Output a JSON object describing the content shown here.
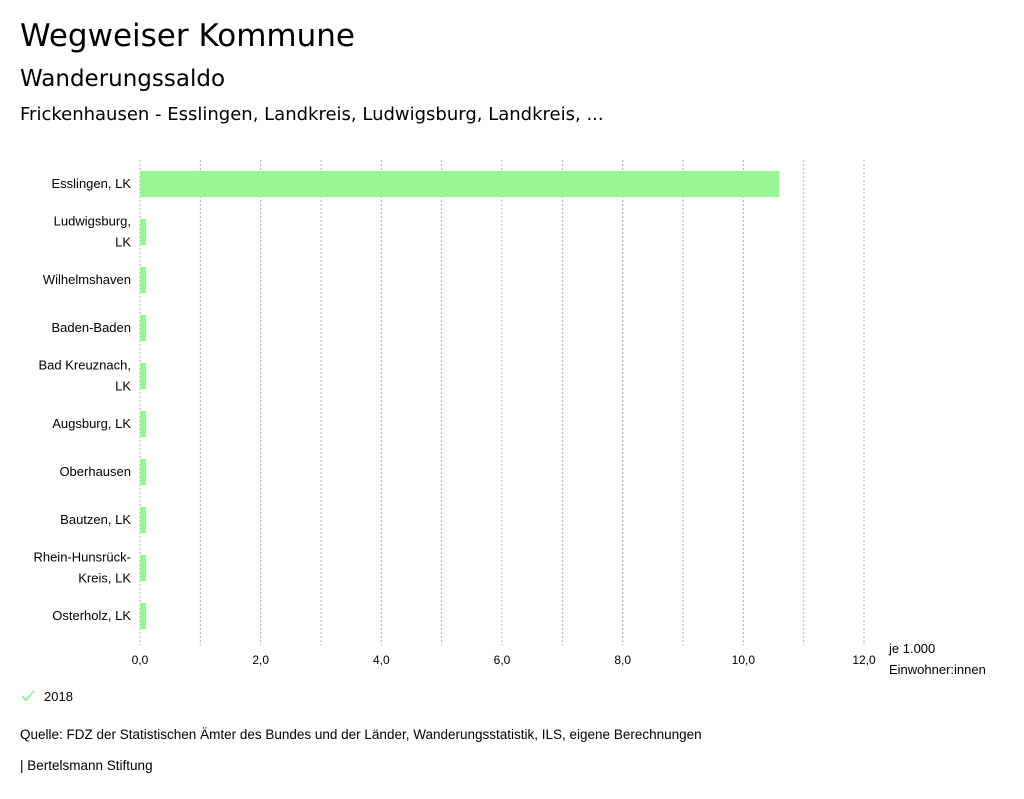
{
  "header": {
    "title": "Wegweiser Kommune",
    "subtitle": "Wanderungssaldo",
    "selection": "Frickenhausen - Esslingen, Landkreis, Ludwigsburg, Landkreis, ..."
  },
  "chart_data": {
    "type": "bar",
    "orientation": "horizontal",
    "categories": [
      [
        "Esslingen, LK"
      ],
      [
        "Ludwigsburg,",
        "LK"
      ],
      [
        "Wilhelmshaven"
      ],
      [
        "Baden-Baden"
      ],
      [
        "Bad Kreuznach,",
        "LK"
      ],
      [
        "Augsburg, LK"
      ],
      [
        "Oberhausen"
      ],
      [
        "Bautzen, LK"
      ],
      [
        "Rhein-Hunsrück-",
        "Kreis, LK"
      ],
      [
        "Osterholz, LK"
      ]
    ],
    "series": [
      {
        "name": "2018",
        "values": [
          10.6,
          0.1,
          0.1,
          0.1,
          0.1,
          0.1,
          0.1,
          0.1,
          0.1,
          0.1
        ]
      }
    ],
    "xlim": [
      0,
      12
    ],
    "tick_labels": [
      "0,0",
      "2,0",
      "4,0",
      "6,0",
      "8,0",
      "10,0",
      "12,0"
    ],
    "unit_label": [
      "je 1.000",
      "Einwohner:innen"
    ],
    "grid": true,
    "legend_position": "bottom-left",
    "colors": {
      "bar": "#98f794",
      "grid": "#b0b0b0",
      "check": "#98f794"
    }
  },
  "legend": {
    "label": "2018",
    "icon": "check-icon"
  },
  "footer": {
    "source": "Quelle: FDZ der Statistischen Ämter des Bundes und der Länder, Wanderungsstatistik, ILS, eigene Berechnungen",
    "credit": "| Bertelsmann Stiftung"
  }
}
